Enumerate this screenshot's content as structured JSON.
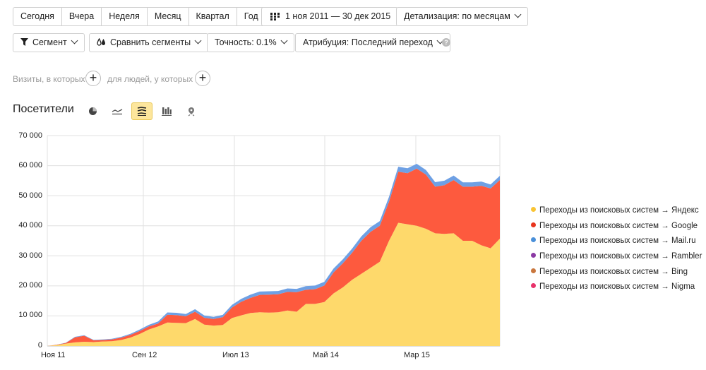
{
  "toolbar": {
    "periods": [
      "Сегодня",
      "Вчера",
      "Неделя",
      "Месяц",
      "Квартал",
      "Год"
    ],
    "date_range": "1 ноя 2011 — 30 дек 2015",
    "detail": "Детализация: по месяцам",
    "segment": "Сегмент",
    "compare": "Сравнить сегменты",
    "accuracy": "Точность: 0.1%",
    "attribution": "Атрибуция: Последний переход"
  },
  "filters": {
    "visits": "Визиты, в которых",
    "people": "для людей, у которых"
  },
  "report": {
    "title": "Посетители"
  },
  "colors": {
    "yandex": "#fed96b",
    "google": "#fd5a3e",
    "mail": "#6ea0e4",
    "rambler": "#8b3aa4",
    "bing": "#c9773e",
    "nigma": "#e8336b",
    "grid": "#e0e0e0"
  },
  "chart_data": {
    "type": "area",
    "stacked": true,
    "x_tick_labels": [
      "Ноя 11",
      "Сен 12",
      "Июл 13",
      "Май 14",
      "Мар 15"
    ],
    "ylim": [
      0,
      70000
    ],
    "y_ticks": [
      "0",
      "10 000",
      "20 000",
      "30 000",
      "40 000",
      "50 000",
      "60 000",
      "70 000"
    ],
    "x_start": "2011-11",
    "x_end": "2015-12",
    "series": [
      {
        "name": "Переходы из поисковых систем → Яндекс",
        "color": "#fed96b",
        "values": [
          0,
          300,
          800,
          1200,
          1400,
          1300,
          1500,
          1600,
          2000,
          2800,
          4000,
          5500,
          6500,
          7800,
          7700,
          7600,
          9000,
          7100,
          6800,
          7000,
          9300,
          10200,
          11000,
          11200,
          11100,
          11200,
          11800,
          11400,
          14000,
          14000,
          14600,
          17500,
          19500,
          22000,
          24000,
          26000,
          28000,
          35000,
          41000,
          40500,
          40000,
          39000,
          37500,
          37300,
          37500,
          35000,
          35000,
          33500,
          32500,
          35700
        ]
      },
      {
        "name": "Переходы из поисковых систем → Google",
        "color": "#fd5a3e",
        "values": [
          0,
          100,
          200,
          1700,
          2000,
          600,
          500,
          600,
          800,
          900,
          1000,
          1000,
          1000,
          2600,
          2600,
          2300,
          2400,
          2300,
          2200,
          2600,
          3500,
          4500,
          5000,
          5800,
          6000,
          6000,
          6200,
          6500,
          4700,
          4900,
          5500,
          7000,
          8000,
          9000,
          11000,
          12000,
          12000,
          13000,
          17000,
          17000,
          19000,
          18000,
          15500,
          16200,
          17700,
          18000,
          18000,
          19800,
          19900,
          19500
        ]
      },
      {
        "name": "Переходы из поисковых систем → Mail.ru",
        "color": "#6ea0e4",
        "values": [
          0,
          50,
          80,
          150,
          200,
          150,
          150,
          200,
          250,
          350,
          450,
          550,
          650,
          750,
          750,
          750,
          850,
          750,
          700,
          750,
          900,
          1000,
          1100,
          1100,
          1100,
          1100,
          1150,
          1100,
          1200,
          1200,
          1250,
          1300,
          1350,
          1400,
          1450,
          1500,
          1550,
          1600,
          1650,
          1650,
          1600,
          1550,
          1500,
          1500,
          1500,
          1450,
          1450,
          1400,
          1350,
          1400
        ]
      },
      {
        "name": "Переходы из поисковых систем → Rambler",
        "color": "#8b3aa4",
        "values": []
      },
      {
        "name": "Переходы из поисковых систем → Bing",
        "color": "#c9773e",
        "values": []
      },
      {
        "name": "Переходы из поисковых систем → Nigma",
        "color": "#e8336b",
        "values": []
      }
    ],
    "grid": true,
    "legend": "right"
  }
}
